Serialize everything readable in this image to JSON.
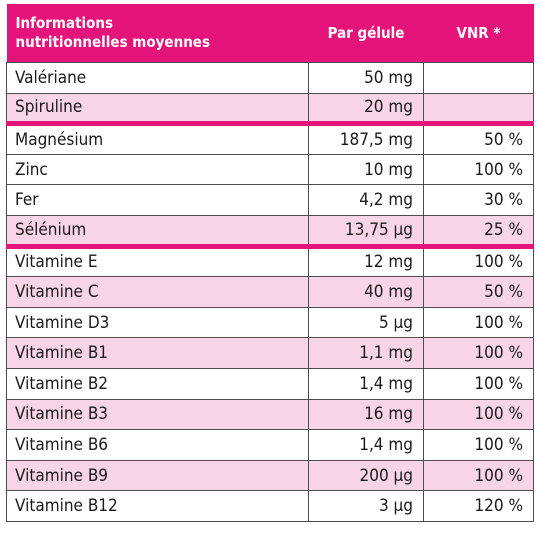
{
  "header": {
    "col1_line1": "Informations",
    "col1_line2": "nutritionnelles moyennes",
    "col2": "Par gélule",
    "col3": "VNR *"
  },
  "rows": [
    {
      "name": "Valériane",
      "per_capsule": "50 mg",
      "vnr": ""
    },
    {
      "name": "Spiruline",
      "per_capsule": "20 mg",
      "vnr": ""
    },
    {
      "name": "Magnésium",
      "per_capsule": "187,5 mg",
      "vnr": "50 %"
    },
    {
      "name": "Zinc",
      "per_capsule": "10 mg",
      "vnr": "100 %"
    },
    {
      "name": "Fer",
      "per_capsule": "4,2 mg",
      "vnr": "30 %"
    },
    {
      "name": "Sélénium",
      "per_capsule": "13,75 µg",
      "vnr": "25 %"
    },
    {
      "name": "Vitamine E",
      "per_capsule": "12 mg",
      "vnr": "100 %"
    },
    {
      "name": "Vitamine C",
      "per_capsule": "40 mg",
      "vnr": "50 %"
    },
    {
      "name": "Vitamine D3",
      "per_capsule": "5 µg",
      "vnr": "100 %"
    },
    {
      "name": "Vitamine B1",
      "per_capsule": "1,1 mg",
      "vnr": "100 %"
    },
    {
      "name": "Vitamine B2",
      "per_capsule": "1,4 mg",
      "vnr": "100 %"
    },
    {
      "name": "Vitamine B3",
      "per_capsule": "16 mg",
      "vnr": "100 %"
    },
    {
      "name": "Vitamine B6",
      "per_capsule": "1,4 mg",
      "vnr": "100 %"
    },
    {
      "name": "Vitamine B9",
      "per_capsule": "200 µg",
      "vnr": "100 %"
    },
    {
      "name": "Vitamine B12",
      "per_capsule": "3 µg",
      "vnr": "120 %"
    }
  ],
  "colors": {
    "accent": "#e4147a",
    "row_alt": "#f7d5e6",
    "border": "#4d4d4d"
  }
}
